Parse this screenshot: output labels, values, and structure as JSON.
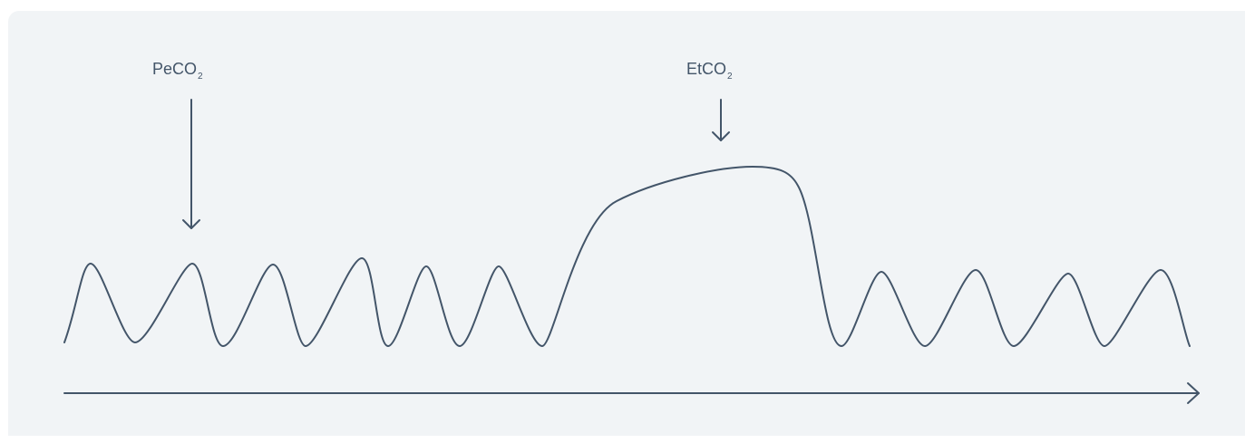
{
  "labels": {
    "peco2_main": "PeCO",
    "peco2_sub": "2",
    "etco2_main": "EtCO",
    "etco2_sub": "2"
  },
  "colors": {
    "background_panel": "#f1f4f6",
    "stroke": "#435569"
  }
}
